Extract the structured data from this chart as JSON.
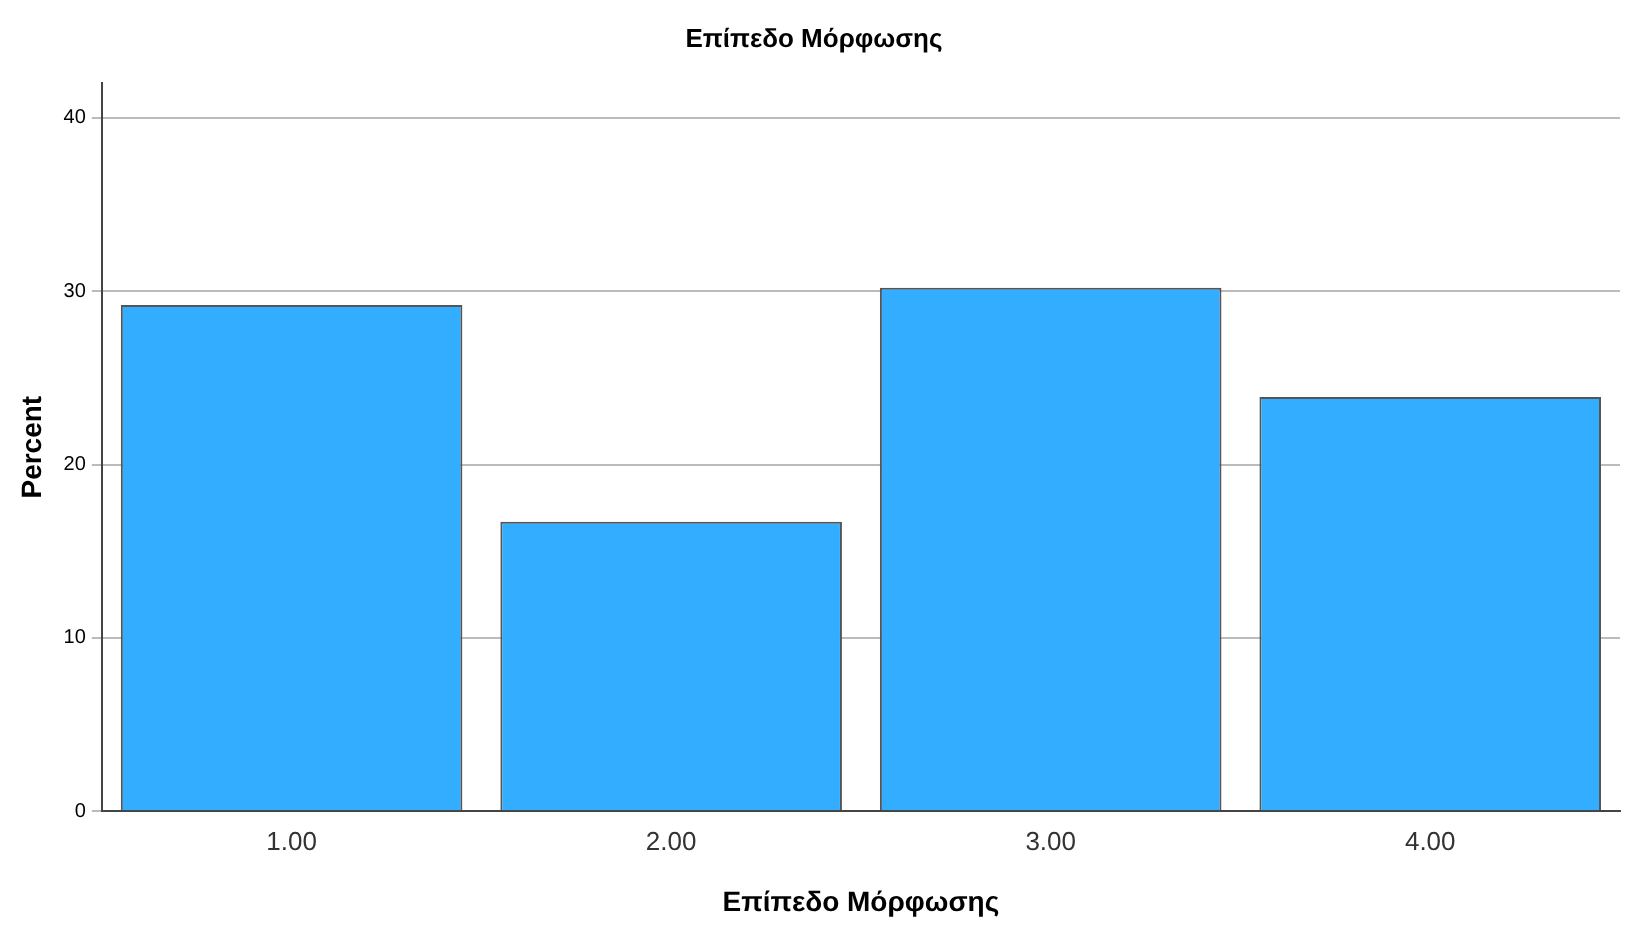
{
  "chart_data": {
    "type": "bar",
    "title": "Επίπεδο Μόρφωσης",
    "xlabel": "Επίπεδο Μόρφωσης",
    "ylabel": "Percent",
    "categories": [
      "1.00",
      "2.00",
      "3.00",
      "4.00"
    ],
    "values": [
      29.2,
      16.7,
      30.2,
      23.9
    ],
    "color": "#33adff",
    "ylim": [
      0,
      42
    ],
    "yticks": [
      0,
      10,
      20,
      30,
      40
    ],
    "grid": "y",
    "legend": false
  }
}
